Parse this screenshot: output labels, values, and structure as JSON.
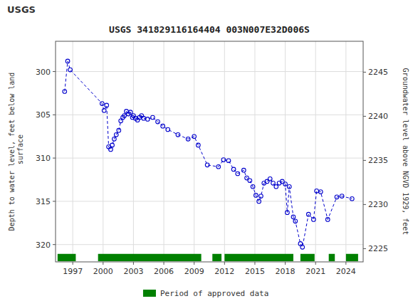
{
  "chart_data": {
    "type": "line",
    "title": "USGS 341829116164404 003N007E32D006S",
    "annotations": [
      "USGS"
    ],
    "y_label": "Depth to water level, feet below land\n surface",
    "y2_label": "Groundwater level above NGVD 1929, feet",
    "xlim": [
      1995.3,
      2025.7
    ],
    "xticks": [
      1997,
      2000,
      2003,
      2006,
      2009,
      2012,
      2015,
      2018,
      2021,
      2024
    ],
    "ylim": [
      322,
      296.5
    ],
    "yticks": [
      300,
      305,
      310,
      315,
      320
    ],
    "y2lim": [
      2223.5,
      2248.5
    ],
    "y2ticks": [
      2225,
      2230,
      2235,
      2240,
      2245
    ],
    "grid": true,
    "legend": "bottom",
    "x": [
      1996.2,
      1996.5,
      1996.75,
      1999.9,
      2000.1,
      2000.35,
      2000.55,
      2000.75,
      2000.9,
      2001.1,
      2001.3,
      2001.55,
      2001.75,
      2001.95,
      2002.1,
      2002.3,
      2002.5,
      2002.7,
      2002.9,
      2003.0,
      2003.2,
      2003.4,
      2003.6,
      2003.8,
      2004.0,
      2004.4,
      2004.9,
      2005.4,
      2005.9,
      2006.4,
      2007.4,
      2008.4,
      2009.0,
      2009.4,
      2010.3,
      2011.4,
      2011.9,
      2012.4,
      2012.9,
      2013.3,
      2013.9,
      2014.2,
      2014.5,
      2014.8,
      2015.1,
      2015.4,
      2015.6,
      2015.9,
      2016.2,
      2016.5,
      2016.8,
      2017.1,
      2017.4,
      2017.7,
      2018.0,
      2018.2,
      2018.4,
      2018.8,
      2019.0,
      2019.5,
      2019.7,
      2020.3,
      2020.8,
      2021.1,
      2021.5,
      2022.2,
      2023.1,
      2023.6,
      2024.6
    ],
    "series": [
      {
        "type": "line",
        "color": "#0000cc",
        "marker": "open-circle",
        "line_style": "dashed",
        "values": [
          302.3,
          298.8,
          299.8,
          303.7,
          304.5,
          303.9,
          308.7,
          309.0,
          308.5,
          307.8,
          307.3,
          306.8,
          305.7,
          305.3,
          305.1,
          304.6,
          304.9,
          304.7,
          305.3,
          305.1,
          305.4,
          305.6,
          305.3,
          305.1,
          305.4,
          305.5,
          305.3,
          305.8,
          306.3,
          306.7,
          307.3,
          307.8,
          307.5,
          308.5,
          310.8,
          311.0,
          310.2,
          310.3,
          311.3,
          311.8,
          311.4,
          312.3,
          312.6,
          313.3,
          314.3,
          315.0,
          314.4,
          312.9,
          312.7,
          312.4,
          312.9,
          313.3,
          312.9,
          312.7,
          313.0,
          316.3,
          313.3,
          316.8,
          317.3,
          319.9,
          320.3,
          316.5,
          317.1,
          313.8,
          313.9,
          317.1,
          314.5,
          314.4,
          314.7
        ]
      },
      {
        "type": "bar",
        "orientation": "horizontal",
        "name": "Period of approved data",
        "color": "#008000",
        "y": 321.5,
        "bar_height": 0.85,
        "ranges": [
          [
            1995.5,
            1997.3
          ],
          [
            1999.5,
            2009.7
          ],
          [
            2010.8,
            2011.7
          ],
          [
            2012.0,
            2018.8
          ],
          [
            2019.5,
            2020.9
          ],
          [
            2022.3,
            2022.9
          ],
          [
            2024.0,
            2025.2
          ]
        ]
      }
    ]
  }
}
